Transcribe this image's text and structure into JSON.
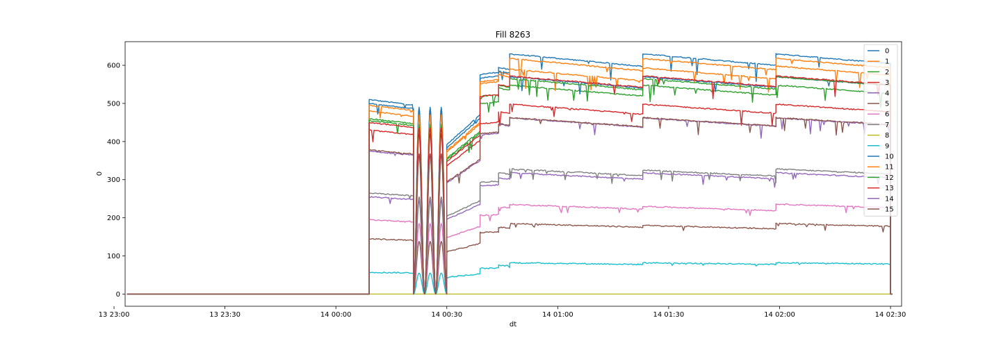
{
  "chart_data": {
    "type": "line",
    "title": "Fill 8263",
    "xlabel": "dt",
    "ylabel": "0",
    "xlim": [
      "13 23:03",
      "14 02:33"
    ],
    "ylim": [
      -32,
      662
    ],
    "x_tick_labels": [
      "13 23:00",
      "13 23:30",
      "14 00:00",
      "14 00:30",
      "14 01:00",
      "14 01:30",
      "14 02:00",
      "14 02:30"
    ],
    "y_tick_labels": [
      "0",
      "100",
      "200",
      "300",
      "400",
      "500",
      "600"
    ],
    "y_ticks": [
      0,
      100,
      200,
      300,
      400,
      500,
      600
    ],
    "grid": false,
    "legend_position": "top-right",
    "plateaus": [
      {
        "start": "14 00:09",
        "end": "14 00:21",
        "shape": "step",
        "drop": 0.028
      },
      {
        "start": "14 00:30",
        "end": "14 00:39",
        "shape": "ramp",
        "from": 0.8,
        "to": 0.96
      },
      {
        "start": "14 00:39",
        "end": "14 00:44",
        "shape": "ramp",
        "from": 0.96,
        "to": 0.97
      },
      {
        "start": "14 00:44",
        "end": "14 00:47",
        "shape": "step",
        "drop": 0.01
      },
      {
        "start": "14 00:47",
        "end": "14 01:23",
        "shape": "step",
        "drop": 0.052
      },
      {
        "start": "14 01:23",
        "end": "14 01:59",
        "shape": "step",
        "drop": 0.048
      },
      {
        "start": "14 01:59",
        "end": "14 02:30",
        "shape": "step",
        "drop": 0.04
      }
    ],
    "oscillation": {
      "start": "14 00:21",
      "end": "14 00:30",
      "cycles": 3
    },
    "zero_before": "14 00:09",
    "zero_after": "14 02:30",
    "series": [
      {
        "name": "0",
        "color": "#1f77b4",
        "plateau_levels": [
          510,
          490,
          600,
          594,
          630,
          630,
          630
        ]
      },
      {
        "name": "1",
        "color": "#ff7f0e",
        "plateau_levels": [
          480,
          465,
          575,
          582,
          618,
          618,
          618
        ]
      },
      {
        "name": "2",
        "color": "#2ca02c",
        "plateau_levels": [
          460,
          445,
          520,
          540,
          548,
          548,
          548
        ]
      },
      {
        "name": "3",
        "color": "#d62728",
        "plateau_levels": [
          430,
          420,
          465,
          478,
          498,
          498,
          498
        ]
      },
      {
        "name": "4",
        "color": "#9467bd",
        "plateau_levels": [
          255,
          245,
          295,
          305,
          318,
          318,
          318
        ]
      },
      {
        "name": "5",
        "color": "#8c564b",
        "plateau_levels": [
          145,
          138,
          168,
          175,
          185,
          180,
          185
        ]
      },
      {
        "name": "6",
        "color": "#e377c2",
        "plateau_levels": [
          195,
          185,
          215,
          228,
          235,
          230,
          236
        ]
      },
      {
        "name": "7",
        "color": "#7f7f7f",
        "plateau_levels": [
          265,
          255,
          305,
          318,
          328,
          325,
          328
        ]
      },
      {
        "name": "8",
        "color": "#bcbd22",
        "plateau_levels": [
          0,
          0,
          0,
          0,
          0,
          0,
          0
        ]
      },
      {
        "name": "9",
        "color": "#17becf",
        "plateau_levels": [
          57,
          55,
          70,
          75,
          82,
          82,
          82
        ]
      },
      {
        "name": "10",
        "color": "#1f77b4",
        "plateau_levels": [
          500,
          480,
          590,
          585,
          570,
          570,
          570
        ]
      },
      {
        "name": "11",
        "color": "#ff7f0e",
        "plateau_levels": [
          495,
          470,
          580,
          575,
          590,
          593,
          598
        ]
      },
      {
        "name": "12",
        "color": "#2ca02c",
        "plateau_levels": [
          455,
          440,
          540,
          548,
          565,
          565,
          570
        ]
      },
      {
        "name": "13",
        "color": "#d62728",
        "plateau_levels": [
          450,
          435,
          540,
          550,
          572,
          572,
          572
        ]
      },
      {
        "name": "14",
        "color": "#9467bd",
        "plateau_levels": [
          375,
          365,
          435,
          445,
          462,
          462,
          462
        ]
      },
      {
        "name": "15",
        "color": "#8c564b",
        "plateau_levels": [
          378,
          368,
          438,
          447,
          463,
          463,
          463
        ]
      }
    ]
  }
}
